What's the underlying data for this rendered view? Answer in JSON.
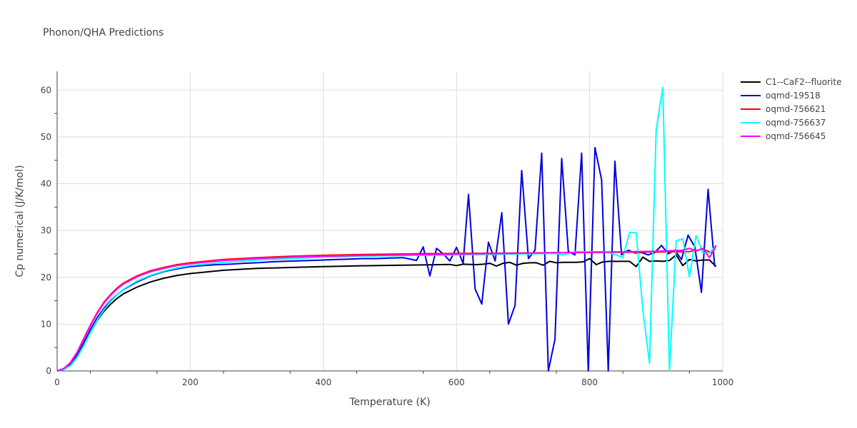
{
  "chart_data": {
    "type": "line",
    "title": "Phonon/QHA Predictions",
    "xlabel": "Temperature (K)",
    "ylabel": "Cp numerical (J/K/mol)",
    "xlim": [
      0,
      1000
    ],
    "ylim": [
      0,
      64
    ],
    "xticks": [
      0,
      200,
      400,
      600,
      800,
      1000
    ],
    "yticks": [
      0,
      10,
      20,
      30,
      40,
      50,
      60
    ],
    "grid": true,
    "legend_position": "top-right",
    "series": [
      {
        "name": "C1--CaF2--fluorite",
        "color": "#000000",
        "points": [
          [
            0,
            0
          ],
          [
            10,
            0.3
          ],
          [
            20,
            1.2
          ],
          [
            30,
            3
          ],
          [
            40,
            5.5
          ],
          [
            50,
            8.2
          ],
          [
            60,
            10.7
          ],
          [
            70,
            12.7
          ],
          [
            80,
            14.2
          ],
          [
            90,
            15.5
          ],
          [
            100,
            16.5
          ],
          [
            120,
            17.9
          ],
          [
            140,
            19
          ],
          [
            160,
            19.8
          ],
          [
            180,
            20.4
          ],
          [
            200,
            20.8
          ],
          [
            250,
            21.5
          ],
          [
            300,
            21.9
          ],
          [
            350,
            22.1
          ],
          [
            400,
            22.3
          ],
          [
            450,
            22.45
          ],
          [
            500,
            22.55
          ],
          [
            550,
            22.65
          ],
          [
            590,
            22.75
          ],
          [
            600,
            22.5
          ],
          [
            610,
            22.8
          ],
          [
            630,
            22.7
          ],
          [
            640,
            22.8
          ],
          [
            650,
            23
          ],
          [
            660,
            22.4
          ],
          [
            670,
            23
          ],
          [
            680,
            23.2
          ],
          [
            690,
            22.6
          ],
          [
            700,
            23
          ],
          [
            710,
            23.1
          ],
          [
            720,
            23.1
          ],
          [
            730,
            22.6
          ],
          [
            740,
            23.4
          ],
          [
            750,
            23.1
          ],
          [
            760,
            23.2
          ],
          [
            780,
            23.2
          ],
          [
            790,
            23.3
          ],
          [
            800,
            24
          ],
          [
            810,
            22.7
          ],
          [
            820,
            23.3
          ],
          [
            830,
            23.4
          ],
          [
            850,
            23.4
          ],
          [
            860,
            23.4
          ],
          [
            870,
            22.3
          ],
          [
            880,
            24.3
          ],
          [
            890,
            23.4
          ],
          [
            900,
            23.5
          ],
          [
            910,
            23.4
          ],
          [
            920,
            23.6
          ],
          [
            930,
            24.8
          ],
          [
            940,
            22.5
          ],
          [
            950,
            23.8
          ],
          [
            960,
            23.5
          ],
          [
            970,
            23.7
          ],
          [
            980,
            23.7
          ],
          [
            990,
            22.3
          ]
        ]
      },
      {
        "name": "oqmd-19518",
        "color": "#0000dd",
        "points": [
          [
            0,
            0
          ],
          [
            10,
            0.4
          ],
          [
            20,
            1.4
          ],
          [
            30,
            3.4
          ],
          [
            40,
            6
          ],
          [
            50,
            8.8
          ],
          [
            60,
            11.3
          ],
          [
            70,
            13.3
          ],
          [
            80,
            15
          ],
          [
            90,
            16.3
          ],
          [
            100,
            17.4
          ],
          [
            120,
            19
          ],
          [
            140,
            20.3
          ],
          [
            160,
            21.2
          ],
          [
            180,
            21.8
          ],
          [
            200,
            22.3
          ],
          [
            220,
            22.5
          ],
          [
            240,
            22.7
          ],
          [
            260,
            22.8
          ],
          [
            280,
            23
          ],
          [
            300,
            23.1
          ],
          [
            320,
            23.3
          ],
          [
            340,
            23.4
          ],
          [
            360,
            23.5
          ],
          [
            380,
            23.6
          ],
          [
            400,
            23.7
          ],
          [
            420,
            23.8
          ],
          [
            440,
            23.9
          ],
          [
            460,
            24
          ],
          [
            480,
            24
          ],
          [
            500,
            24.1
          ],
          [
            520,
            24.2
          ],
          [
            540,
            23.6
          ],
          [
            550,
            26.5
          ],
          [
            560,
            20.3
          ],
          [
            570,
            26.2
          ],
          [
            580,
            25
          ],
          [
            590,
            23.5
          ],
          [
            600,
            26.4
          ],
          [
            610,
            23
          ],
          [
            618,
            37.7
          ],
          [
            628,
            17.5
          ],
          [
            638,
            14.3
          ],
          [
            648,
            27.5
          ],
          [
            658,
            23.5
          ],
          [
            668,
            33.8
          ],
          [
            678,
            10
          ],
          [
            688,
            14
          ],
          [
            698,
            42.8
          ],
          [
            708,
            24
          ],
          [
            718,
            25.8
          ],
          [
            728,
            46.5
          ],
          [
            738,
            0
          ],
          [
            748,
            6.8
          ],
          [
            758,
            45.4
          ],
          [
            768,
            25.5
          ],
          [
            778,
            24.8
          ],
          [
            788,
            46.5
          ],
          [
            798,
            0
          ],
          [
            808,
            47.7
          ],
          [
            818,
            40.8
          ],
          [
            828,
            0
          ],
          [
            838,
            44.8
          ],
          [
            848,
            24.8
          ],
          [
            858,
            25.8
          ],
          [
            868,
            25.2
          ],
          [
            878,
            25.3
          ],
          [
            888,
            24.8
          ],
          [
            898,
            25.3
          ],
          [
            908,
            26.8
          ],
          [
            918,
            25
          ],
          [
            928,
            25.8
          ],
          [
            938,
            23.8
          ],
          [
            948,
            29
          ],
          [
            958,
            26.5
          ],
          [
            968,
            16.8
          ],
          [
            978,
            38.8
          ],
          [
            988,
            22.3
          ]
        ]
      },
      {
        "name": "oqmd-756621",
        "color": "#ff0000",
        "points": [
          [
            0,
            0
          ],
          [
            10,
            0.5
          ],
          [
            20,
            1.8
          ],
          [
            30,
            4
          ],
          [
            40,
            6.9
          ],
          [
            50,
            9.8
          ],
          [
            60,
            12.4
          ],
          [
            70,
            14.6
          ],
          [
            80,
            16.3
          ],
          [
            90,
            17.7
          ],
          [
            100,
            18.8
          ],
          [
            120,
            20.3
          ],
          [
            140,
            21.4
          ],
          [
            160,
            22.1
          ],
          [
            180,
            22.7
          ],
          [
            200,
            23.1
          ],
          [
            250,
            23.8
          ],
          [
            300,
            24.2
          ],
          [
            350,
            24.5
          ],
          [
            400,
            24.7
          ],
          [
            450,
            24.85
          ],
          [
            500,
            24.95
          ],
          [
            550,
            25.05
          ],
          [
            600,
            25.1
          ],
          [
            650,
            25.15
          ],
          [
            700,
            25.2
          ],
          [
            750,
            25.25
          ],
          [
            800,
            25.3
          ],
          [
            850,
            25.35
          ],
          [
            900,
            25.4
          ],
          [
            950,
            25.5
          ],
          [
            970,
            26
          ],
          [
            985,
            25.2
          ],
          [
            990,
            26.8
          ]
        ]
      },
      {
        "name": "oqmd-756637",
        "color": "#00ffff",
        "points": [
          [
            0,
            0
          ],
          [
            10,
            0.3
          ],
          [
            20,
            1.1
          ],
          [
            30,
            2.9
          ],
          [
            40,
            5.4
          ],
          [
            50,
            8.2
          ],
          [
            60,
            10.8
          ],
          [
            70,
            13
          ],
          [
            80,
            14.8
          ],
          [
            90,
            16.3
          ],
          [
            100,
            17.5
          ],
          [
            120,
            19.2
          ],
          [
            140,
            20.4
          ],
          [
            160,
            21.3
          ],
          [
            180,
            22
          ],
          [
            200,
            22.5
          ],
          [
            250,
            23.2
          ],
          [
            300,
            23.7
          ],
          [
            350,
            24
          ],
          [
            400,
            24.3
          ],
          [
            450,
            24.5
          ],
          [
            500,
            24.6
          ],
          [
            550,
            24.7
          ],
          [
            600,
            24.8
          ],
          [
            650,
            24.9
          ],
          [
            700,
            25
          ],
          [
            750,
            25.1
          ],
          [
            760,
            24.8
          ],
          [
            780,
            25.5
          ],
          [
            800,
            25.4
          ],
          [
            820,
            25.5
          ],
          [
            840,
            24.8
          ],
          [
            850,
            24.2
          ],
          [
            860,
            29.6
          ],
          [
            870,
            29.5
          ],
          [
            880,
            12.9
          ],
          [
            890,
            1.6
          ],
          [
            900,
            51.5
          ],
          [
            910,
            60.5
          ],
          [
            920,
            0
          ],
          [
            930,
            27.8
          ],
          [
            940,
            28.2
          ],
          [
            950,
            20.1
          ],
          [
            960,
            28.9
          ],
          [
            970,
            25.3
          ],
          [
            980,
            25.2
          ],
          [
            990,
            26.8
          ]
        ]
      },
      {
        "name": "oqmd-756645",
        "color": "#ff00ff",
        "points": [
          [
            0,
            0
          ],
          [
            10,
            0.5
          ],
          [
            20,
            1.7
          ],
          [
            30,
            3.9
          ],
          [
            40,
            6.7
          ],
          [
            50,
            9.6
          ],
          [
            60,
            12.2
          ],
          [
            70,
            14.4
          ],
          [
            80,
            16.1
          ],
          [
            90,
            17.5
          ],
          [
            100,
            18.6
          ],
          [
            120,
            20.1
          ],
          [
            140,
            21.2
          ],
          [
            160,
            21.9
          ],
          [
            180,
            22.5
          ],
          [
            200,
            22.9
          ],
          [
            250,
            23.6
          ],
          [
            300,
            24
          ],
          [
            350,
            24.3
          ],
          [
            400,
            24.5
          ],
          [
            450,
            24.65
          ],
          [
            500,
            24.75
          ],
          [
            550,
            24.85
          ],
          [
            600,
            24.95
          ],
          [
            650,
            25.05
          ],
          [
            700,
            25.15
          ],
          [
            750,
            25.25
          ],
          [
            800,
            25.35
          ],
          [
            850,
            25.45
          ],
          [
            900,
            25.55
          ],
          [
            940,
            25.8
          ],
          [
            950,
            26.2
          ],
          [
            960,
            25.6
          ],
          [
            970,
            26.2
          ],
          [
            980,
            24.2
          ],
          [
            990,
            26.8
          ]
        ]
      }
    ]
  }
}
